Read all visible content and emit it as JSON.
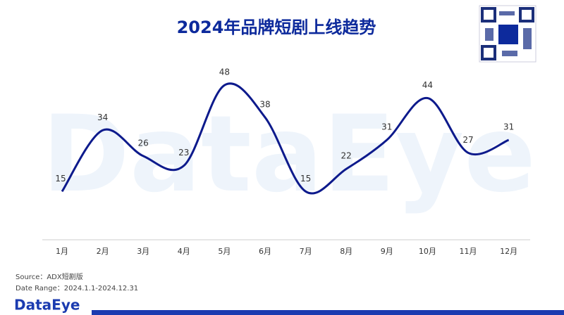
{
  "chart_data": {
    "type": "line",
    "title": "2024年品牌短剧上线趋势",
    "categories": [
      "1月",
      "2月",
      "3月",
      "4月",
      "5月",
      "6月",
      "7月",
      "8月",
      "9月",
      "10月",
      "11月",
      "12月"
    ],
    "values": [
      15,
      34,
      26,
      23,
      48,
      38,
      15,
      22,
      31,
      44,
      27,
      31
    ],
    "color": "#0d1a8c",
    "ylim": [
      0,
      50
    ],
    "source": "Source：ADX短剧版",
    "date_range": "Date Range：2024.1.1-2024.12.31",
    "watermark": "DataEye",
    "logo": "DataEye"
  }
}
